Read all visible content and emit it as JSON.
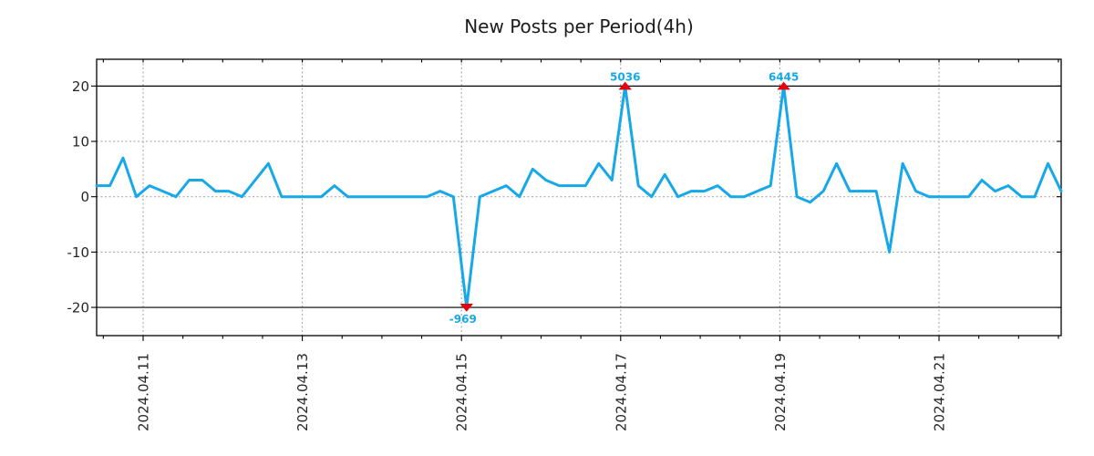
{
  "chart_data": {
    "type": "line",
    "title": "New Posts per Period(4h)",
    "period_hours": 4,
    "x_tick_labels": [
      "2024.04.11",
      "2024.04.13",
      "2024.04.15",
      "2024.04.17",
      "2024.04.19",
      "2024.04.21"
    ],
    "y_ticks": [
      20,
      10,
      0,
      -10,
      -20
    ],
    "ylim": [
      -25,
      25
    ],
    "clip_lines": [
      20,
      -20
    ],
    "grid": {
      "horizontal_at": [
        10,
        0,
        -10
      ],
      "vertical_at": "major-x-ticks",
      "style": "dotted"
    },
    "legend": null,
    "series": [
      {
        "name": "new-posts-per-period",
        "values": [
          2,
          2,
          7,
          0,
          2,
          1,
          0,
          3,
          3,
          1,
          1,
          0,
          3,
          6,
          0,
          0,
          0,
          0,
          2,
          0,
          0,
          0,
          0,
          0,
          0,
          0,
          1,
          0,
          -20,
          0,
          1,
          2,
          0,
          5,
          3,
          2,
          2,
          2,
          6,
          3,
          20,
          2,
          0,
          4,
          0,
          1,
          1,
          2,
          0,
          0,
          1,
          2,
          20,
          0,
          -1,
          1,
          6,
          1,
          1,
          1,
          -10,
          6,
          1,
          0,
          0,
          0,
          0,
          3,
          1,
          2,
          0,
          0,
          6,
          1
        ]
      }
    ],
    "annotations": [
      {
        "index": 28,
        "text": "-969",
        "value": -969,
        "direction": "down"
      },
      {
        "index": 40,
        "text": "5036",
        "value": 5036,
        "direction": "up"
      },
      {
        "index": 52,
        "text": "6445",
        "value": 6445,
        "direction": "up"
      }
    ],
    "note": "values beyond +/-20 are clipped at the solid black clip lines and annotated with their actual value"
  },
  "colors": {
    "line": "#16A8E8",
    "marker": "#E8000B",
    "annotation_text": "#16A8E8",
    "grid": "#A0A0A0",
    "axis": "#000000",
    "clip_line": "#000000",
    "title": "#1C1C1C",
    "tick_label": "#262626",
    "background": "#FFFFFF"
  }
}
